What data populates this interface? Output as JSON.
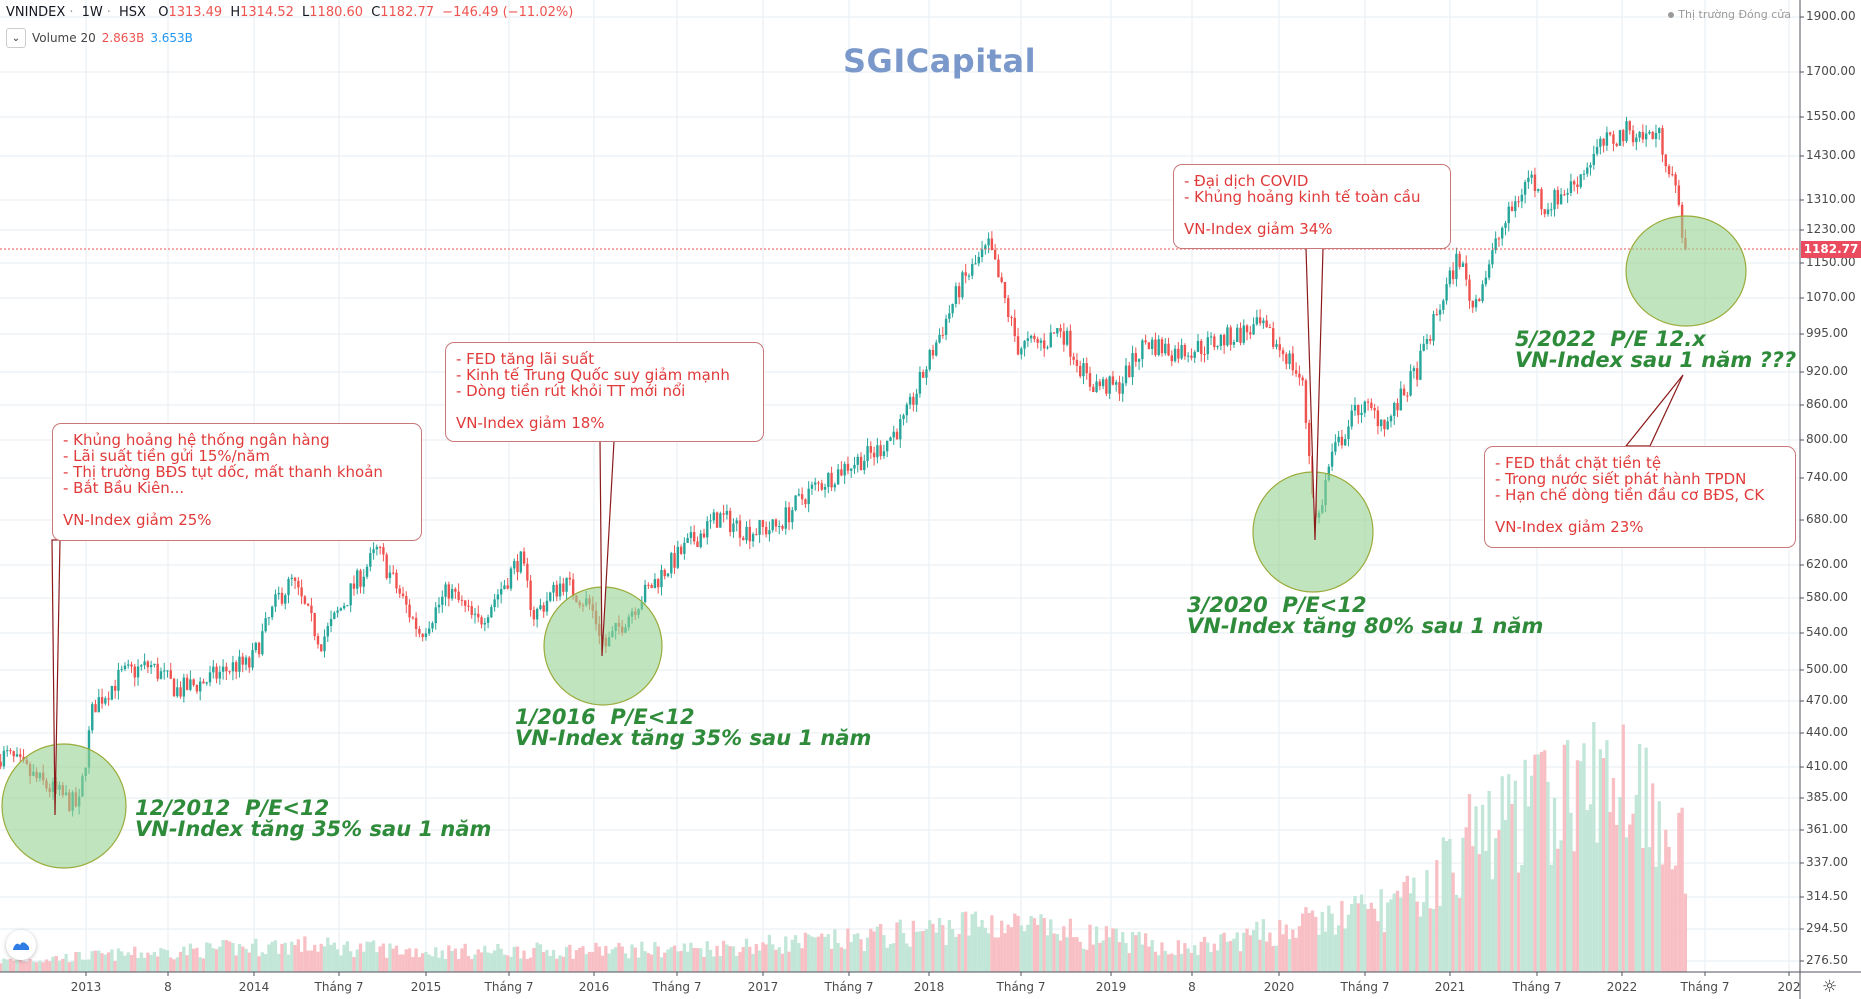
{
  "header": {
    "symbol": "VNINDEX",
    "interval": "1W",
    "exchange": "HSX",
    "open_label": "O",
    "open": "1313.49",
    "high_label": "H",
    "high": "1314.52",
    "low_label": "L",
    "low": "1180.60",
    "close_label": "C",
    "close": "1182.77",
    "change": "−146.49 (−11.02%)",
    "volume_label": "Volume 20",
    "volume_value": "2.863B",
    "volume_ma": "3.653B",
    "market_status": "Thị trường Đóng cửa"
  },
  "watermark": "SGICapital",
  "colors": {
    "up": "#26a69a",
    "down": "#ef5350",
    "volume_up": "#c2e6d8",
    "volume_down": "#f8c0c5",
    "annotation_text": "#e03a3a",
    "label_green": "#2e8b3a",
    "circle_fill": "#b9e0b5",
    "brand": "#7b98cb",
    "last_price": "#ea4b5e"
  },
  "annotations": [
    {
      "lines": [
        "- Khủng hoảng hệ thống ngân hàng",
        "- Lãi suất tiền gửi 15%/năm",
        "- Thị trường BĐS tụt dốc, mất thanh khoản",
        "- Bắt Bầu Kiên..."
      ],
      "summary": "VN-Index giảm 25%"
    },
    {
      "lines": [
        "- FED tăng lãi suất",
        "- Kinh tế Trung Quốc suy giảm mạnh",
        "- Dòng tiền rút khỏi TT mới nổi"
      ],
      "summary": "VN-Index giảm 18%"
    },
    {
      "lines": [
        "- Đại dịch COVID",
        "- Khủng hoảng kinh tế toàn cầu"
      ],
      "summary": "VN-Index giảm 34%"
    },
    {
      "lines": [
        "- FED thắt chặt tiền tệ",
        "- Trong nước siết phát hành TPDN",
        "- Hạn chế dòng tiền đầu cơ BĐS, CK"
      ],
      "summary": "VN-Index giảm 23%"
    }
  ],
  "labels": [
    {
      "line1": "12/2012  P/E<12",
      "line2": "VN-Index tăng 35% sau 1 năm"
    },
    {
      "line1": "1/2016  P/E<12",
      "line2": "VN-Index tăng 35% sau 1 năm"
    },
    {
      "line1": "3/2020  P/E<12",
      "line2": "VN-Index tăng 80% sau 1 năm"
    },
    {
      "line1": "5/2022  P/E 12.x",
      "line2": "VN-Index sau 1 năm ???"
    }
  ],
  "chart_data": {
    "type": "candlestick",
    "interval": "weekly",
    "y_scale": "log",
    "y_ticks": [
      "1900.00",
      "1700.00",
      "1550.00",
      "1430.00",
      "1310.00",
      "1230.00",
      "1150.00",
      "1070.00",
      "995.00",
      "920.00",
      "860.00",
      "800.00",
      "740.00",
      "680.00",
      "620.00",
      "580.00",
      "540.00",
      "500.00",
      "470.00",
      "440.00",
      "410.00",
      "385.00",
      "361.00",
      "337.00",
      "314.50",
      "294.50",
      "276.50"
    ],
    "x_ticks": [
      "2013",
      "8",
      "2014",
      "Tháng 7",
      "2015",
      "Tháng 7",
      "2016",
      "Tháng 7",
      "2017",
      "Tháng 7",
      "2018",
      "Tháng 7",
      "2019",
      "8",
      "2020",
      "Tháng 7",
      "2021",
      "Tháng 7",
      "2022",
      "Tháng 7",
      "202"
    ],
    "last_price": "1182.77",
    "grid": true,
    "price_path": [
      {
        "date": "2012-07",
        "close": 420
      },
      {
        "date": "2012-09",
        "close": 400
      },
      {
        "date": "2012-11",
        "close": 385
      },
      {
        "date": "2012-12",
        "close": 378
      },
      {
        "date": "2013-01",
        "close": 465
      },
      {
        "date": "2013-03",
        "close": 495
      },
      {
        "date": "2013-05",
        "close": 505
      },
      {
        "date": "2013-07",
        "close": 480
      },
      {
        "date": "2013-09",
        "close": 490
      },
      {
        "date": "2013-11",
        "close": 505
      },
      {
        "date": "2013-12",
        "close": 505
      },
      {
        "date": "2014-02",
        "close": 580
      },
      {
        "date": "2014-03",
        "close": 600
      },
      {
        "date": "2014-05",
        "close": 530
      },
      {
        "date": "2014-07",
        "close": 585
      },
      {
        "date": "2014-09",
        "close": 640
      },
      {
        "date": "2014-11",
        "close": 570
      },
      {
        "date": "2014-12",
        "close": 540
      },
      {
        "date": "2015-02",
        "close": 590
      },
      {
        "date": "2015-04",
        "close": 550
      },
      {
        "date": "2015-06",
        "close": 600
      },
      {
        "date": "2015-07",
        "close": 630
      },
      {
        "date": "2015-08",
        "close": 560
      },
      {
        "date": "2015-10",
        "close": 600
      },
      {
        "date": "2015-12",
        "close": 570
      },
      {
        "date": "2016-01",
        "close": 525
      },
      {
        "date": "2016-03",
        "close": 570
      },
      {
        "date": "2016-05",
        "close": 610
      },
      {
        "date": "2016-07",
        "close": 650
      },
      {
        "date": "2016-09",
        "close": 685
      },
      {
        "date": "2016-11",
        "close": 665
      },
      {
        "date": "2017-01",
        "close": 670
      },
      {
        "date": "2017-03",
        "close": 715
      },
      {
        "date": "2017-06",
        "close": 760
      },
      {
        "date": "2017-08",
        "close": 780
      },
      {
        "date": "2017-10",
        "close": 830
      },
      {
        "date": "2017-12",
        "close": 960
      },
      {
        "date": "2018-02",
        "close": 1100
      },
      {
        "date": "2018-04",
        "close": 1190
      },
      {
        "date": "2018-06",
        "close": 970
      },
      {
        "date": "2018-08",
        "close": 980
      },
      {
        "date": "2018-09",
        "close": 1010
      },
      {
        "date": "2018-11",
        "close": 900
      },
      {
        "date": "2019-01",
        "close": 890
      },
      {
        "date": "2019-03",
        "close": 980
      },
      {
        "date": "2019-05",
        "close": 960
      },
      {
        "date": "2019-07",
        "close": 970
      },
      {
        "date": "2019-09",
        "close": 990
      },
      {
        "date": "2019-11",
        "close": 1010
      },
      {
        "date": "2020-01",
        "close": 950
      },
      {
        "date": "2020-02",
        "close": 900
      },
      {
        "date": "2020-03",
        "close": 670
      },
      {
        "date": "2020-04",
        "close": 770
      },
      {
        "date": "2020-06",
        "close": 860
      },
      {
        "date": "2020-08",
        "close": 830
      },
      {
        "date": "2020-10",
        "close": 920
      },
      {
        "date": "2020-12",
        "close": 1080
      },
      {
        "date": "2021-01",
        "close": 1170
      },
      {
        "date": "2021-02",
        "close": 1050
      },
      {
        "date": "2021-04",
        "close": 1230
      },
      {
        "date": "2021-06",
        "close": 1380
      },
      {
        "date": "2021-07",
        "close": 1290
      },
      {
        "date": "2021-09",
        "close": 1350
      },
      {
        "date": "2021-11",
        "close": 1460
      },
      {
        "date": "2022-01",
        "close": 1510
      },
      {
        "date": "2022-02",
        "close": 1490
      },
      {
        "date": "2022-03",
        "close": 1500
      },
      {
        "date": "2022-04",
        "close": 1380
      },
      {
        "date": "2022-05",
        "close": 1182.77
      }
    ],
    "volume_level": [
      {
        "date": "2012-07",
        "level": 0.05
      },
      {
        "date": "2014-03",
        "level": 0.12
      },
      {
        "date": "2015-01",
        "level": 0.09
      },
      {
        "date": "2016-06",
        "level": 0.1
      },
      {
        "date": "2017-06",
        "level": 0.14
      },
      {
        "date": "2018-04",
        "level": 0.22
      },
      {
        "date": "2019-06",
        "level": 0.1
      },
      {
        "date": "2020-03",
        "level": 0.22
      },
      {
        "date": "2020-10",
        "level": 0.32
      },
      {
        "date": "2021-02",
        "level": 0.6
      },
      {
        "date": "2021-06",
        "level": 0.72
      },
      {
        "date": "2022-01",
        "level": 0.9
      },
      {
        "date": "2022-05",
        "level": 0.55
      }
    ]
  }
}
